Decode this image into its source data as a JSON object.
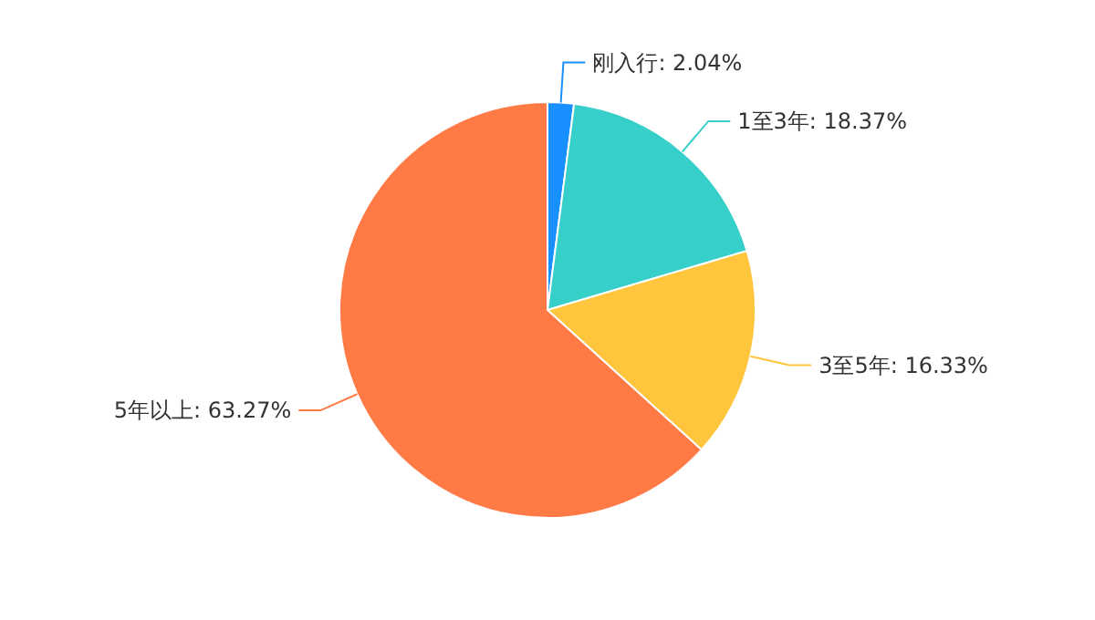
{
  "chart_data": {
    "type": "pie",
    "categories": [
      "刚入行",
      "1至3年",
      "3至5年",
      "5年以上"
    ],
    "values": [
      2.04,
      18.37,
      16.33,
      63.27
    ],
    "value_labels": [
      "2.04%",
      "18.37%",
      "16.33%",
      "63.27%"
    ],
    "colors": [
      "#1890ff",
      "#36cfc9",
      "#ffc53d",
      "#ff7a45"
    ]
  }
}
